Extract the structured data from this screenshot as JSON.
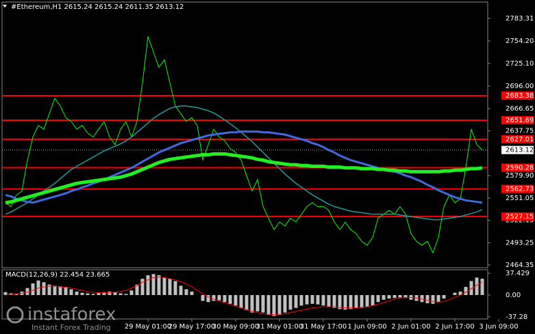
{
  "chart_data": [
    {
      "type": "line",
      "title": "#Ethereum,H1 2615.24 2615.24 2611.35 2613.12",
      "categories": [
        null,
        null,
        null,
        null,
        null,
        null,
        null,
        null,
        null,
        null,
        null,
        null,
        null,
        null,
        null,
        null,
        null,
        null,
        null,
        null,
        null,
        null,
        null,
        null,
        null,
        null,
        "29 May 01:00",
        null,
        null,
        null,
        null,
        null,
        null,
        null,
        "29 May 17:00",
        null,
        null,
        null,
        null,
        null,
        null,
        null,
        "30 May 09:00",
        null,
        null,
        null,
        null,
        null,
        null,
        null,
        "31 May 01:00",
        null,
        null,
        null,
        null,
        null,
        null,
        null,
        "31 May 17:00",
        null,
        null,
        null,
        null,
        null,
        null,
        null,
        "1 Jun 09:00",
        null,
        null,
        null,
        null,
        null,
        null,
        null,
        "2 Jun 01:00",
        null,
        null,
        null,
        null,
        null,
        null,
        null,
        "2 Jun 17:00",
        null,
        null,
        null,
        null,
        null,
        null,
        null,
        "3 Jun 09:00"
      ],
      "series": [
        {
          "color": "#00ff00",
          "width": 1,
          "values": [
            2545,
            2540,
            2555,
            2560,
            2600,
            2630,
            2645,
            2640,
            2660,
            2680,
            2670,
            2655,
            2650,
            2640,
            2645,
            2635,
            2630,
            2640,
            2650,
            2630,
            2620,
            2640,
            2650,
            2630,
            2650,
            2700,
            2760,
            2740,
            2720,
            2730,
            2700,
            2670,
            2660,
            2650,
            2655,
            2645,
            2600,
            2620,
            2640,
            2630,
            2625,
            2615,
            2610,
            2600,
            2580,
            2560,
            2575,
            2540,
            2525,
            2510,
            2520,
            2515,
            2525,
            2520,
            2530,
            2540,
            2545,
            2540,
            2540,
            2535,
            2520,
            2510,
            2520,
            2510,
            2505,
            2495,
            2490,
            2500,
            2525,
            2530,
            2535,
            2530,
            2540,
            2530,
            2505,
            2495,
            2490,
            2495,
            2480,
            2500,
            2540,
            2555,
            2545,
            2550,
            2590,
            2640,
            2620,
            2613.12,
            null,
            null,
            null
          ]
        },
        {
          "color": "#1e9e9e",
          "width": 1.5,
          "values": [
            2530,
            2533,
            2537,
            2541,
            2545,
            2550,
            2555,
            2560,
            2565,
            2570,
            2576,
            2582,
            2588,
            2592,
            2596,
            2600,
            2604,
            2608,
            2612,
            2615,
            2618,
            2621,
            2625,
            2630,
            2636,
            2642,
            2648,
            2654,
            2659,
            2663,
            2667,
            2669,
            2670,
            2670,
            2669,
            2668,
            2666,
            2664,
            2661,
            2657,
            2652,
            2647,
            2642,
            2636,
            2630,
            2624,
            2617,
            2610,
            2603,
            2596,
            2589,
            2582,
            2576,
            2570,
            2565,
            2560,
            2555,
            2551,
            2547,
            2543,
            2540,
            2538,
            2536,
            2534,
            2533,
            2532,
            2531,
            2530,
            2530,
            2530,
            2530,
            2530,
            2529,
            2528,
            2527,
            2526,
            2525,
            2524,
            2523,
            2523,
            2524,
            2525,
            2526,
            2527,
            2529,
            2531,
            2533,
            2536,
            null,
            null,
            null
          ]
        },
        {
          "color": "#4169e1",
          "width": 3,
          "values": [
            2555,
            2553,
            2550,
            2548,
            2546,
            2545,
            2547,
            2549,
            2551,
            2553,
            2555,
            2557,
            2560,
            2562,
            2565,
            2567,
            2570,
            2572,
            2575,
            2578,
            2581,
            2584,
            2587,
            2590,
            2594,
            2598,
            2602,
            2606,
            2610,
            2613,
            2616,
            2619,
            2622,
            2624,
            2626,
            2628,
            2630,
            2632,
            2633,
            2634,
            2635,
            2636,
            2636,
            2637,
            2637,
            2637,
            2637,
            2636,
            2636,
            2635,
            2634,
            2633,
            2631,
            2629,
            2627,
            2625,
            2622,
            2620,
            2617,
            2613,
            2610,
            2606,
            2603,
            2600,
            2598,
            2596,
            2594,
            2592,
            2590,
            2588,
            2586,
            2585,
            2583,
            2580,
            2578,
            2575,
            2572,
            2568,
            2565,
            2561,
            2558,
            2555,
            2552,
            2550,
            2548,
            2547,
            2546,
            2545,
            null,
            null,
            null
          ]
        },
        {
          "color": "#22ee22",
          "width": 5,
          "values": [
            2545,
            2546,
            2548,
            2550,
            2552,
            2554,
            2556,
            2558,
            2560,
            2562,
            2564,
            2566,
            2568,
            2570,
            2571,
            2572,
            2573,
            2574,
            2575,
            2576,
            2577,
            2578,
            2580,
            2582,
            2585,
            2588,
            2591,
            2594,
            2597,
            2599,
            2601,
            2602,
            2603,
            2604,
            2605,
            2606,
            2607,
            2607,
            2608,
            2608,
            2608,
            2607,
            2606,
            2605,
            2604,
            2603,
            2601,
            2600,
            2598,
            2597,
            2596,
            2595,
            2594,
            2594,
            2593,
            2593,
            2592,
            2592,
            2592,
            2591,
            2591,
            2591,
            2590,
            2590,
            2590,
            2589,
            2589,
            2589,
            2588,
            2588,
            2587,
            2587,
            2586,
            2586,
            2585,
            2585,
            2585,
            2585,
            2585,
            2585,
            2586,
            2586,
            2587,
            2587,
            2588,
            2589,
            2589,
            2590,
            null,
            null,
            null
          ]
        }
      ],
      "levels": [
        {
          "value": 2683.38,
          "color": "#ff0000"
        },
        {
          "value": 2651.69,
          "color": "#ff0000"
        },
        {
          "value": 2627.01,
          "color": "#ff0000"
        },
        {
          "value": 2590.28,
          "color": "#ff0000"
        },
        {
          "value": 2562.73,
          "color": "#ff0000"
        },
        {
          "value": 2527.15,
          "color": "#ff0000"
        }
      ],
      "last": 2613.12,
      "ylim": [
        2460.8,
        2802.75
      ],
      "yticks": [
        2783.31,
        {
          "value": 2754.2,
          "label": "2754.20"
        },
        {
          "value": 2725.1,
          "label": "2725.10"
        },
        {
          "value": 2696,
          "label": "2696.00"
        },
        2666.65,
        2637.75,
        {
          "value": 2579.9,
          "label": "2579.90"
        },
        2551.05,
        2522.15,
        2493.25,
        2464.35
      ]
    },
    {
      "type": "bar",
      "title": "MACD(12,26,9) 22.454 23.665",
      "series": [
        {
          "color": "#c0c0c0",
          "values": [
            5,
            3,
            2,
            6,
            12,
            20,
            25,
            22,
            18,
            16,
            15,
            14,
            10,
            6,
            4,
            3,
            2,
            4,
            5,
            6,
            5,
            3,
            2,
            8,
            18,
            28,
            34,
            36,
            34,
            30,
            28,
            24,
            16,
            10,
            6,
            0,
            -10,
            -12,
            -10,
            -9,
            -12,
            -15,
            -18,
            -22,
            -26,
            -30,
            -28,
            -30,
            -34,
            -36,
            -34,
            -30,
            -25,
            -22,
            -18,
            -16,
            -15,
            -16,
            -18,
            -20,
            -22,
            -24,
            -25,
            -24,
            -22,
            -22,
            -20,
            -18,
            -12,
            -8,
            -6,
            -5,
            -4,
            -5,
            -8,
            -10,
            -12,
            -14,
            -15,
            -12,
            -6,
            0,
            4,
            6,
            14,
            24,
            30,
            28
          ]
        },
        {
          "type": "line",
          "color": "#ff0000",
          "values": [
            0,
            1,
            2,
            3,
            5,
            8,
            12,
            14,
            15,
            15,
            14,
            13,
            12,
            10,
            8,
            6,
            5,
            4,
            4,
            4,
            5,
            6,
            8,
            12,
            16,
            22,
            26,
            30,
            31,
            30,
            28,
            26,
            23,
            19,
            14,
            8,
            2,
            -3,
            -7,
            -10,
            -13,
            -16,
            -19,
            -22,
            -25,
            -28,
            -30,
            -32,
            -33,
            -34,
            -33,
            -32,
            -30,
            -28,
            -26,
            -24,
            -22,
            -21,
            -20,
            -20,
            -20,
            -21,
            -22,
            -22,
            -22,
            -21,
            -20,
            -18,
            -16,
            -13,
            -10,
            -7,
            -5,
            -4,
            -4,
            -5,
            -7,
            -9,
            -11,
            -12,
            -11,
            -8,
            -4,
            0,
            5,
            11,
            17,
            22
          ]
        }
      ],
      "ylim": [
        -39.8,
        43.3
      ],
      "yticks": [
        37.429,
        {
          "value": 0,
          "label": "0.00"
        },
        -37.28
      ]
    }
  ],
  "watermark": {
    "brand": "instaforex",
    "tagline": "Instant Forex Trading"
  }
}
